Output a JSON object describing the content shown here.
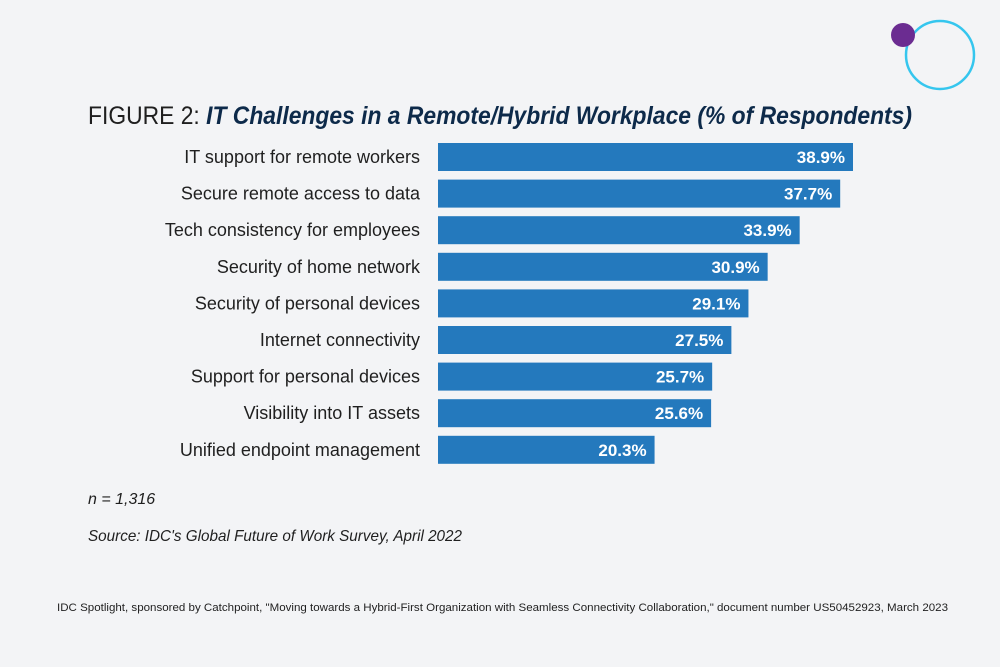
{
  "chart_data": {
    "type": "bar",
    "orientation": "horizontal",
    "title_prefix": "FIGURE 2:",
    "title": "IT Challenges in a Remote/Hybrid Workplace (% of Respondents)",
    "categories": [
      "IT support for remote workers",
      "Secure remote access to data",
      "Tech consistency for employees",
      "Security of home network",
      "Security of personal devices",
      "Internet connectivity",
      "Support for personal devices",
      "Visibility into IT assets",
      "Unified endpoint management"
    ],
    "values": [
      38.9,
      37.7,
      33.9,
      30.9,
      29.1,
      27.5,
      25.7,
      25.6,
      20.3
    ],
    "value_labels": [
      "38.9%",
      "37.7%",
      "33.9%",
      "30.9%",
      "29.1%",
      "27.5%",
      "25.7%",
      "25.6%",
      "20.3%"
    ],
    "xlim": [
      0,
      40
    ],
    "grid": false,
    "bar_color": "#2479bd",
    "note": "n = 1,316",
    "source": "Source: IDC's Global Future of Work Survey, April 2022"
  },
  "footer": "IDC Spotlight, sponsored by Catchpoint, \"Moving towards a Hybrid-First Organization with Seamless Connectivity Collaboration,\" document number US50452923, March 2023",
  "colors": {
    "background": "#f3f4f6",
    "title": "#0d2a4a",
    "logo_ring": "#35c6ee",
    "logo_dot": "#6b2c91"
  }
}
